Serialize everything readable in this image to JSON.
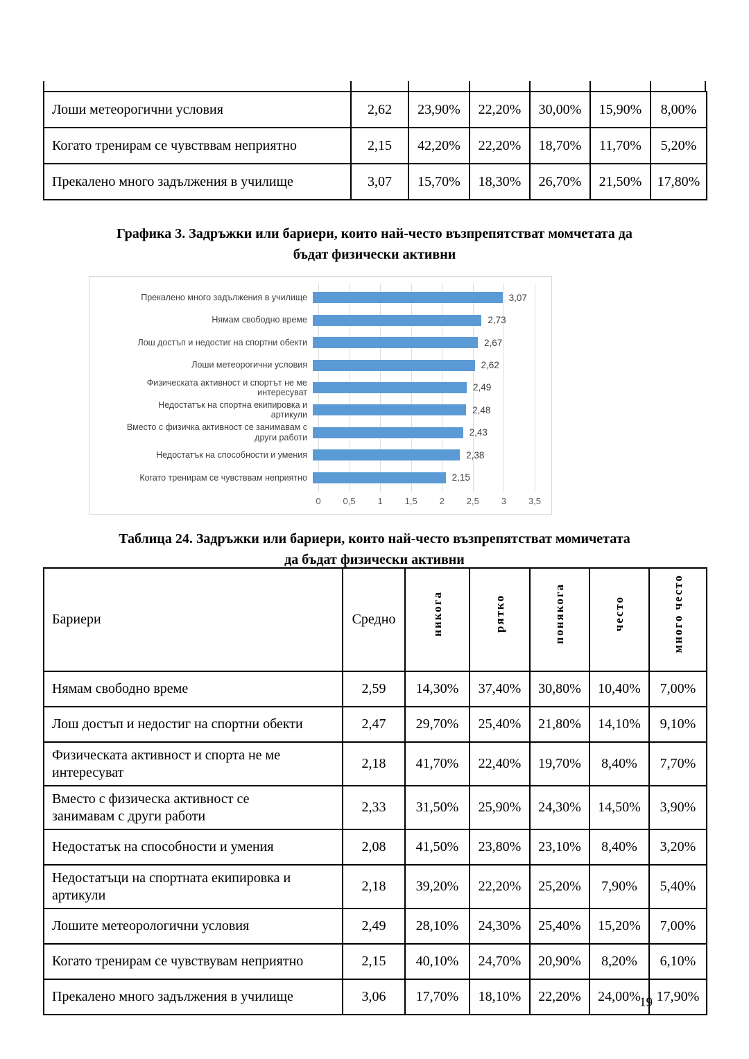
{
  "page": {
    "number": "19"
  },
  "top_table": {
    "rows": [
      {
        "label": "Лоши метеорогични условия",
        "mean": "2,62",
        "values": [
          "23,90%",
          "22,20%",
          "30,00%",
          "15,90%",
          "8,00%"
        ]
      },
      {
        "label": "Когато тренирам се чувстввам неприятно",
        "mean": "2,15",
        "values": [
          "42,20%",
          "22,20%",
          "18,70%",
          "11,70%",
          "5,20%"
        ]
      },
      {
        "label": "Прекалено много задължения в училище",
        "mean": "3,07",
        "values": [
          "15,70%",
          "18,30%",
          "26,70%",
          "21,50%",
          "17,80%"
        ]
      }
    ]
  },
  "chart": {
    "title": "Графика 3. Задръжки или бариери, които най-често възпрепятстват  момчетата да\nбъдат физически активни"
  },
  "chart_data": {
    "type": "bar",
    "orientation": "horizontal",
    "categories": [
      "Прекалено много задължения в училище",
      "Нямам свободно  време",
      "Лош достъп и недостиг на спортни обекти",
      "Лоши метеорогични условия",
      "Физическата активност и спортът не ме\nинтересуват",
      "Недостатък на спортна екипировка и\nартикули",
      "Вместо с физичка активност се занимавам с\nдруги работи",
      "Недостатък на  способности и умения",
      "Когато тренирам се чувстввам неприятно"
    ],
    "values": [
      3.07,
      2.73,
      2.67,
      2.62,
      2.49,
      2.48,
      2.43,
      2.38,
      2.15
    ],
    "value_labels": [
      "3,07",
      "2,73",
      "2,67",
      "2,62",
      "2,49",
      "2,48",
      "2,43",
      "2,38",
      "2,15"
    ],
    "xlim": [
      0,
      3.5
    ],
    "xticks": [
      "0",
      "0,5",
      "1",
      "1,5",
      "2",
      "2,5",
      "3",
      "3,5"
    ],
    "bar_color": "#5b9bd5",
    "grid": "vertical",
    "legend": "none"
  },
  "table24": {
    "title": "Таблица 24. Задръжки или бариери, които най-често възпрепятстват  момичетата\nда бъдат физически активни",
    "headers": {
      "label": "Бариери",
      "mean": "Средно",
      "freq": [
        "никога",
        "рятко",
        "понякога",
        "често",
        "много често"
      ]
    },
    "rows": [
      {
        "label": "Нямам свободно  време",
        "mean": "2,59",
        "values": [
          "14,30%",
          "37,40%",
          "30,80%",
          "10,40%",
          "7,00%"
        ]
      },
      {
        "label": "Лош достъп и недостиг на спортни обекти",
        "mean": "2,47",
        "values": [
          "29,70%",
          "25,40%",
          "21,80%",
          "14,10%",
          "9,10%"
        ]
      },
      {
        "label": "Физическата активност и спорта не ме\nинтересуват",
        "mean": "2,18",
        "values": [
          "41,70%",
          "22,40%",
          "19,70%",
          "8,40%",
          "7,70%"
        ]
      },
      {
        "label": "Вместо с физическа активност се\nзанимавам с други работи",
        "mean": "2,33",
        "values": [
          "31,50%",
          "25,90%",
          "24,30%",
          "14,50%",
          "3,90%"
        ]
      },
      {
        "label": "Недостатък на  способности и умения",
        "mean": "2,08",
        "values": [
          "41,50%",
          "23,80%",
          "23,10%",
          "8,40%",
          "3,20%"
        ]
      },
      {
        "label": "Недостатъци на спортната екипировка и\nартикули",
        "mean": "2,18",
        "values": [
          "39,20%",
          "22,20%",
          "25,20%",
          "7,90%",
          "5,40%"
        ]
      },
      {
        "label": "Лошите метеорологични условия",
        "mean": "2,49",
        "values": [
          "28,10%",
          "24,30%",
          "25,40%",
          "15,20%",
          "7,00%"
        ]
      },
      {
        "label": "Когато тренирам се чувствувам неприятно",
        "mean": "2,15",
        "values": [
          "40,10%",
          "24,70%",
          "20,90%",
          "8,20%",
          "6,10%"
        ]
      },
      {
        "label": "Прекалено много задължения в училище",
        "mean": "3,06",
        "values": [
          "17,70%",
          "18,10%",
          "22,20%",
          "24,00%",
          "17,90%"
        ]
      }
    ]
  }
}
